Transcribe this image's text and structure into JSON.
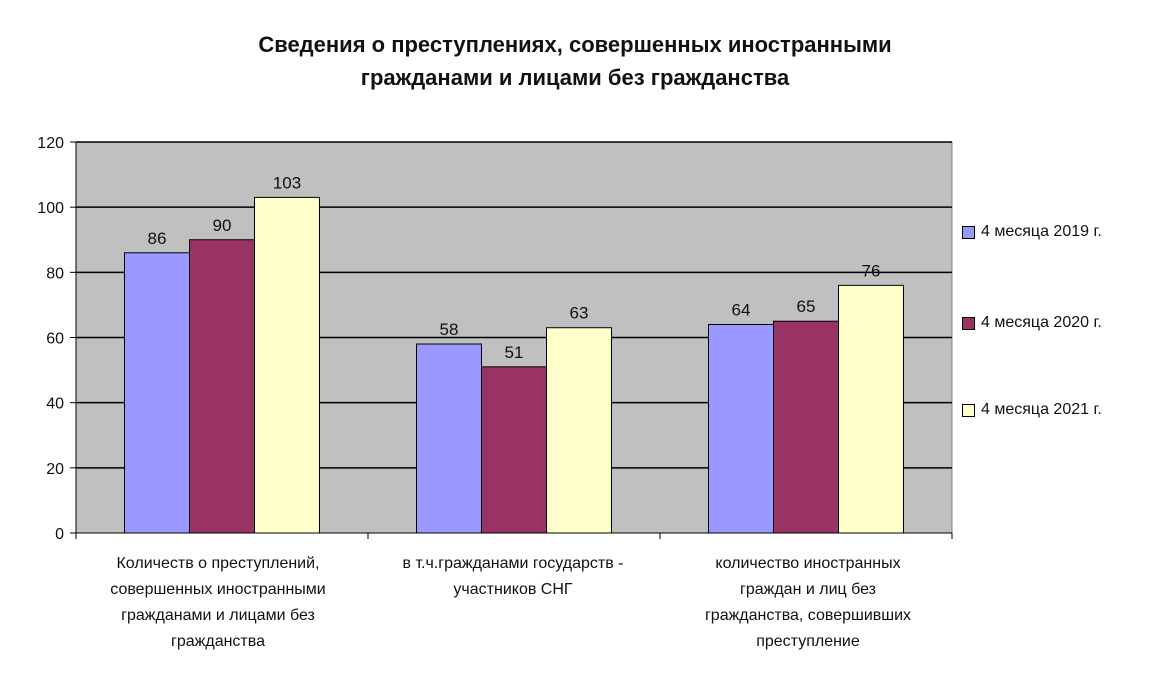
{
  "chart_data": {
    "type": "bar",
    "title": [
      "Сведения о преступлениях, совершенных иностранными",
      "гражданами и лицами без гражданства"
    ],
    "categories": [
      [
        "Количеств о преступлений,",
        "совершенных  иностранными",
        "гражданами и лицами без",
        "гражданства"
      ],
      [
        "в т.ч.гражданами государств -",
        "участников СНГ"
      ],
      [
        "количество иностранных",
        "граждан и лиц без",
        "гражданства, совершивших",
        "преступление"
      ]
    ],
    "series": [
      {
        "name": "4 месяца 2019 г.",
        "color": "#9999ff",
        "values": [
          86,
          58,
          64
        ]
      },
      {
        "name": "4 месяца 2020 г.",
        "color": "#993366",
        "values": [
          90,
          51,
          65
        ]
      },
      {
        "name": "4 месяца 2021 г.",
        "color": "#ffffcc",
        "values": [
          103,
          63,
          76
        ]
      }
    ],
    "ylim": [
      0,
      120
    ],
    "yticks": [
      0,
      20,
      40,
      60,
      80,
      100,
      120
    ],
    "plot_background": "#c0c0c0",
    "grid": true,
    "legend_position": "right"
  }
}
